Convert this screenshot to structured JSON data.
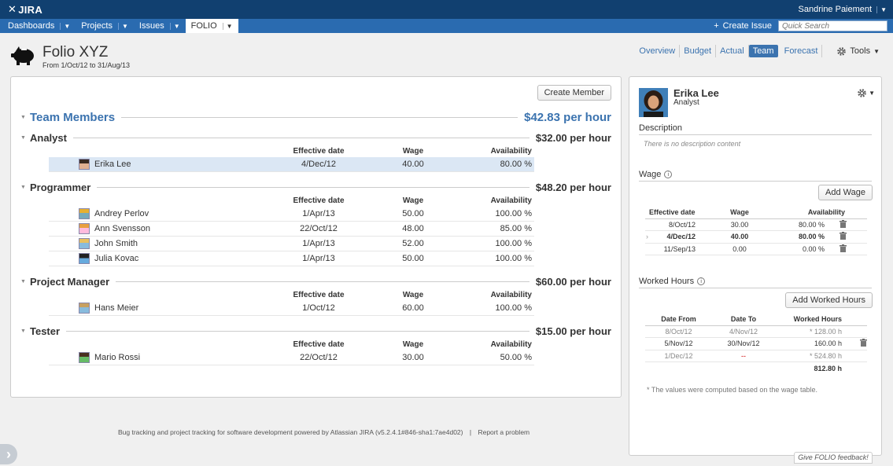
{
  "header": {
    "logo": "JIRA",
    "user": "Sandrine Paiement"
  },
  "nav": {
    "items": [
      {
        "label": "Dashboards"
      },
      {
        "label": "Projects"
      },
      {
        "label": "Issues"
      },
      {
        "label": "FOLIO"
      }
    ],
    "create_issue": "Create Issue",
    "search_placeholder": "Quick Search"
  },
  "page": {
    "title": "Folio XYZ",
    "subtitle": "From 1/Oct/12 to 31/Aug/13",
    "tabs": [
      "Overview",
      "Budget",
      "Actual",
      "Team",
      "Forecast"
    ],
    "tools": "Tools"
  },
  "main": {
    "create_member": "Create Member",
    "team_title": "Team Members",
    "team_rate": "$42.83 per hour",
    "col_date": "Effective date",
    "col_wage": "Wage",
    "col_avail": "Availability",
    "groups": [
      {
        "title": "Analyst",
        "rate": "$32.00 per hour",
        "members": [
          {
            "name": "Erika Lee",
            "date": "4/Dec/12",
            "wage": "40.00",
            "avail": "80.00 %"
          }
        ]
      },
      {
        "title": "Programmer",
        "rate": "$48.20 per hour",
        "members": [
          {
            "name": "Andrey Perlov",
            "date": "1/Apr/13",
            "wage": "50.00",
            "avail": "100.00 %"
          },
          {
            "name": "Ann Svensson",
            "date": "22/Oct/12",
            "wage": "48.00",
            "avail": "85.00 %"
          },
          {
            "name": "John Smith",
            "date": "1/Apr/13",
            "wage": "52.00",
            "avail": "100.00 %"
          },
          {
            "name": "Julia Kovac",
            "date": "1/Apr/13",
            "wage": "50.00",
            "avail": "100.00 %"
          }
        ]
      },
      {
        "title": "Project Manager",
        "rate": "$60.00 per hour",
        "members": [
          {
            "name": "Hans Meier",
            "date": "1/Oct/12",
            "wage": "60.00",
            "avail": "100.00 %"
          }
        ]
      },
      {
        "title": "Tester",
        "rate": "$15.00 per hour",
        "members": [
          {
            "name": "Mario Rossi",
            "date": "22/Oct/12",
            "wage": "30.00",
            "avail": "50.00 %"
          }
        ]
      }
    ]
  },
  "side": {
    "name": "Erika Lee",
    "role": "Analyst",
    "description_title": "Description",
    "description_empty": "There is no description content",
    "wage_title": "Wage",
    "add_wage": "Add Wage",
    "wage_cols": [
      "Effective date",
      "Wage",
      "Availability"
    ],
    "wage_rows": [
      {
        "date": "8/Oct/12",
        "wage": "30.00",
        "avail": "80.00 %"
      },
      {
        "date": "4/Dec/12",
        "wage": "40.00",
        "avail": "80.00 %"
      },
      {
        "date": "11/Sep/13",
        "wage": "0.00",
        "avail": "0.00 %"
      }
    ],
    "hours_title": "Worked Hours",
    "add_hours": "Add Worked Hours",
    "hours_cols": [
      "Date From",
      "Date To",
      "Worked Hours"
    ],
    "hours_rows": [
      {
        "from": "8/Oct/12",
        "to": "4/Nov/12",
        "hours": "* 128.00 h"
      },
      {
        "from": "5/Nov/12",
        "to": "30/Nov/12",
        "hours": "160.00 h"
      },
      {
        "from": "1/Dec/12",
        "to": "--",
        "hours": "* 524.80 h"
      }
    ],
    "hours_total": "812.80 h",
    "note": "* The values were computed based on the wage table."
  },
  "footer": {
    "text": "Bug tracking and project tracking for software development powered by Atlassian JIRA (v5.2.4.1#846-sha1:7ae4d02)",
    "sep": "|",
    "report": "Report a problem",
    "feedback": "Give FOLIO feedback!"
  },
  "colors": {
    "header": "#114070",
    "nav": "#2a6bb0",
    "accent": "#3b73af"
  }
}
